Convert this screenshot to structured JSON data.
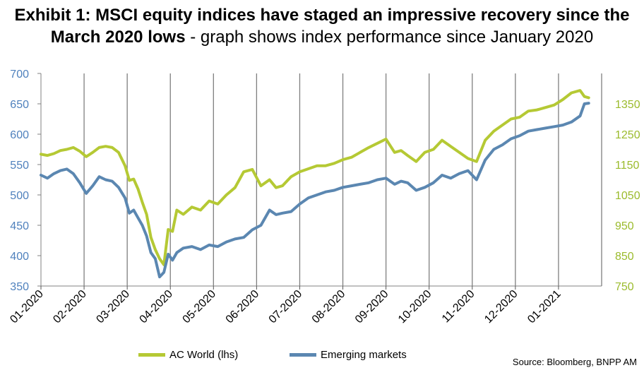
{
  "title": {
    "bold_line1": "Exhibit 1: MSCI equity indices have staged an impressive recovery since the",
    "bold_line2": "March 2020 lows",
    "normal_line2": " - graph shows index performance since January 2020"
  },
  "source": "Source: Bloomberg, BNPP AM",
  "colors": {
    "ac_world": "#b5c934",
    "emerging": "#5b87b1",
    "grid": "#7f7f7f"
  },
  "chart_data": {
    "type": "line",
    "title": "MSCI equity indices have staged an impressive recovery since the March 2020 lows",
    "subtitle": "graph shows index performance since January 2020",
    "x_ticks": [
      "01-2020",
      "02-2020",
      "03-2020",
      "04-2020",
      "05-2020",
      "06-2020",
      "07-2020",
      "08-2020",
      "09-2020",
      "10-2020",
      "11-2020",
      "12-2020",
      "01-2021"
    ],
    "x_range": [
      0,
      13
    ],
    "left_axis": {
      "series": "AC World (lhs)",
      "ylim": [
        350,
        700
      ],
      "ticks": [
        350,
        400,
        450,
        500,
        550,
        600,
        650,
        700
      ],
      "color": "#4f81bd"
    },
    "right_axis": {
      "series": "Emerging markets",
      "ylim": [
        750,
        1450
      ],
      "ticks": [
        750,
        850,
        950,
        1050,
        1150,
        1250,
        1350
      ],
      "color": "#9bbb2c"
    },
    "series": [
      {
        "name": "AC World (lhs)",
        "axis": "left",
        "x": [
          0,
          0.15,
          0.3,
          0.45,
          0.6,
          0.75,
          0.9,
          1.05,
          1.2,
          1.35,
          1.5,
          1.65,
          1.8,
          1.95,
          2.05,
          2.15,
          2.25,
          2.35,
          2.45,
          2.55,
          2.65,
          2.75,
          2.85,
          2.95,
          3.05,
          3.15,
          3.3,
          3.5,
          3.7,
          3.9,
          4.1,
          4.3,
          4.5,
          4.7,
          4.9,
          5.1,
          5.3,
          5.45,
          5.6,
          5.8,
          6.0,
          6.2,
          6.4,
          6.6,
          6.8,
          7.0,
          7.2,
          7.4,
          7.6,
          7.8,
          8.0,
          8.2,
          8.35,
          8.5,
          8.7,
          8.9,
          9.1,
          9.3,
          9.5,
          9.7,
          9.9,
          10.1,
          10.3,
          10.5,
          10.7,
          10.9,
          11.1,
          11.3,
          11.5,
          11.7,
          11.9,
          12.1,
          12.3,
          12.5,
          12.6,
          12.7
        ],
        "values": [
          567,
          565,
          568,
          573,
          575,
          578,
          572,
          563,
          570,
          578,
          580,
          578,
          570,
          548,
          524,
          526,
          510,
          488,
          468,
          430,
          410,
          395,
          385,
          443,
          440,
          475,
          468,
          480,
          475,
          490,
          485,
          500,
          512,
          538,
          542,
          515,
          525,
          512,
          515,
          530,
          538,
          543,
          548,
          548,
          552,
          558,
          562,
          570,
          578,
          585,
          592,
          570,
          573,
          565,
          555,
          570,
          575,
          590,
          580,
          570,
          560,
          555,
          590,
          605,
          615,
          625,
          628,
          638,
          640,
          644,
          648,
          657,
          668,
          672,
          662,
          660
        ]
      },
      {
        "name": "Emerging markets",
        "axis": "right",
        "x": [
          0,
          0.15,
          0.3,
          0.45,
          0.6,
          0.75,
          0.9,
          1.05,
          1.2,
          1.35,
          1.5,
          1.65,
          1.8,
          1.95,
          2.05,
          2.15,
          2.25,
          2.35,
          2.45,
          2.55,
          2.65,
          2.75,
          2.85,
          2.95,
          3.05,
          3.15,
          3.3,
          3.5,
          3.7,
          3.9,
          4.1,
          4.3,
          4.5,
          4.7,
          4.9,
          5.1,
          5.3,
          5.45,
          5.6,
          5.8,
          6.0,
          6.2,
          6.4,
          6.6,
          6.8,
          7.0,
          7.2,
          7.4,
          7.6,
          7.8,
          8.0,
          8.2,
          8.35,
          8.5,
          8.7,
          8.9,
          9.1,
          9.3,
          9.5,
          9.7,
          9.9,
          10.1,
          10.3,
          10.5,
          10.7,
          10.9,
          11.1,
          11.3,
          11.5,
          11.7,
          11.9,
          12.1,
          12.3,
          12.5,
          12.6,
          12.7
        ],
        "values": [
          1115,
          1105,
          1120,
          1130,
          1135,
          1120,
          1090,
          1055,
          1080,
          1110,
          1100,
          1095,
          1075,
          1040,
          990,
          1000,
          975,
          950,
          915,
          860,
          840,
          780,
          795,
          855,
          835,
          860,
          875,
          880,
          870,
          885,
          880,
          895,
          905,
          910,
          935,
          950,
          1000,
          985,
          990,
          995,
          1020,
          1040,
          1050,
          1060,
          1065,
          1075,
          1080,
          1085,
          1090,
          1100,
          1105,
          1085,
          1095,
          1090,
          1065,
          1075,
          1090,
          1115,
          1105,
          1120,
          1130,
          1100,
          1165,
          1200,
          1215,
          1235,
          1245,
          1260,
          1265,
          1270,
          1275,
          1280,
          1290,
          1310,
          1350,
          1352
        ]
      }
    ],
    "legend": [
      "AC World (lhs)",
      "Emerging markets"
    ],
    "legend_position": "bottom",
    "grid": "vertical lines at month ticks",
    "source": "Source: Bloomberg, BNPP AM"
  }
}
